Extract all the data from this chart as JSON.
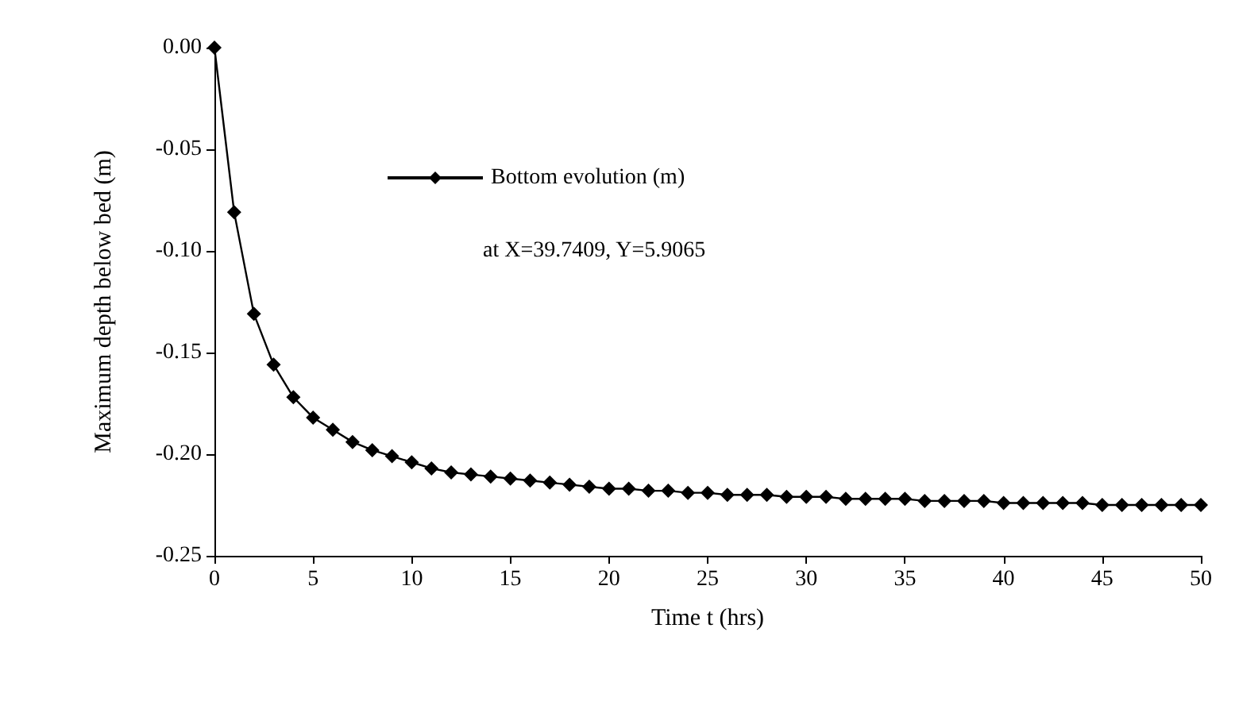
{
  "chart_data": {
    "type": "line",
    "xlabel": "Time t (hrs)",
    "ylabel": "Maximum depth below bed (m)",
    "x": [
      0,
      1,
      2,
      3,
      4,
      5,
      6,
      7,
      8,
      9,
      10,
      11,
      12,
      13,
      14,
      15,
      16,
      17,
      18,
      19,
      20,
      21,
      22,
      23,
      24,
      25,
      26,
      27,
      28,
      29,
      30,
      31,
      32,
      33,
      34,
      35,
      36,
      37,
      38,
      39,
      40,
      41,
      42,
      43,
      44,
      45,
      46,
      47,
      48,
      49,
      50
    ],
    "series": [
      {
        "name": "Bottom evolution (m)",
        "color": "#000000",
        "values": [
          0,
          -0.081,
          -0.131,
          -0.156,
          -0.172,
          -0.182,
          -0.188,
          -0.194,
          -0.198,
          -0.201,
          -0.204,
          -0.207,
          -0.209,
          -0.21,
          -0.211,
          -0.212,
          -0.213,
          -0.214,
          -0.215,
          -0.216,
          -0.217,
          -0.217,
          -0.218,
          -0.218,
          -0.219,
          -0.219,
          -0.22,
          -0.22,
          -0.22,
          -0.221,
          -0.221,
          -0.221,
          -0.222,
          -0.222,
          -0.222,
          -0.222,
          -0.223,
          -0.223,
          -0.223,
          -0.223,
          -0.224,
          -0.224,
          -0.224,
          -0.224,
          -0.224,
          -0.225,
          -0.225,
          -0.225,
          -0.225,
          -0.225,
          -0.225
        ]
      }
    ],
    "annotations": [
      "at X=39.7409, Y=5.9065"
    ],
    "xlim": [
      0,
      50
    ],
    "xticks": [
      0,
      5,
      10,
      15,
      20,
      25,
      30,
      35,
      40,
      45,
      50
    ],
    "ylim": [
      -0.25,
      0
    ],
    "yticks": [
      {
        "value": -0.25,
        "label": "-0.25"
      },
      {
        "value": -0.2,
        "label": "-0.20"
      },
      {
        "value": -0.15,
        "label": "-0.15"
      },
      {
        "value": -0.1,
        "label": "-0.10"
      },
      {
        "value": -0.05,
        "label": "-0.05"
      },
      {
        "value": 0,
        "label": "0.00"
      }
    ],
    "grid": false,
    "legend": "top",
    "marker": "diamond",
    "line_style": "solid"
  }
}
